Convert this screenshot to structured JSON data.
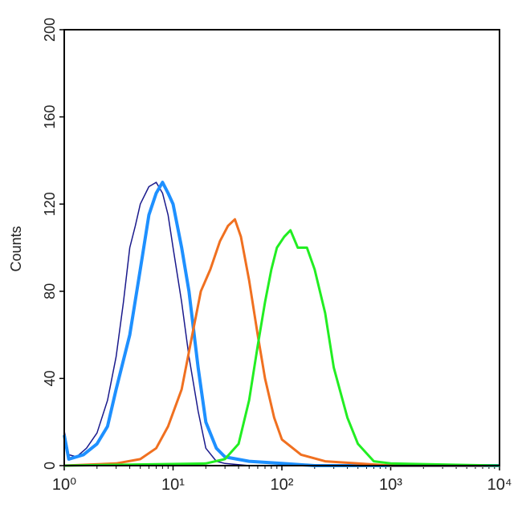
{
  "chart_data": {
    "type": "line",
    "xscale": "log",
    "ylabel": "Counts",
    "xlim": [
      1,
      10000
    ],
    "ylim": [
      0,
      200
    ],
    "xticks": [
      {
        "value": 1,
        "label": "10⁰"
      },
      {
        "value": 10,
        "label": "10¹"
      },
      {
        "value": 100,
        "label": "10²"
      },
      {
        "value": 1000,
        "label": "10³"
      },
      {
        "value": 10000,
        "label": "10⁴"
      }
    ],
    "yticks": [
      0,
      40,
      80,
      120,
      160,
      200
    ],
    "series": [
      {
        "color": "#1a1a8c",
        "width": 1.5,
        "x": [
          1,
          1.1,
          1.3,
          1.6,
          2,
          2.5,
          3,
          3.5,
          4,
          4.5,
          5,
          6,
          7,
          8,
          9,
          10,
          12,
          14,
          17,
          20,
          25,
          30,
          50
        ],
        "values": [
          16,
          5,
          4,
          8,
          15,
          30,
          50,
          75,
          100,
          110,
          120,
          128,
          130,
          125,
          115,
          100,
          75,
          50,
          25,
          8,
          2,
          1,
          0
        ]
      },
      {
        "color": "#1e90ff",
        "width": 4,
        "x": [
          1,
          1.1,
          1.5,
          2,
          2.5,
          3,
          4,
          5,
          6,
          7,
          8,
          9,
          10,
          12,
          14,
          17,
          20,
          25,
          30,
          50,
          100,
          200,
          10000
        ],
        "values": [
          14,
          3,
          5,
          10,
          18,
          35,
          60,
          90,
          115,
          125,
          130,
          125,
          120,
          100,
          80,
          45,
          20,
          8,
          4,
          2,
          1,
          0,
          0
        ]
      },
      {
        "color": "#f07020",
        "width": 3,
        "x": [
          1,
          3,
          5,
          7,
          9,
          12,
          15,
          18,
          22,
          27,
          32,
          37,
          42,
          50,
          60,
          70,
          85,
          100,
          150,
          250,
          500,
          1000,
          10000
        ],
        "values": [
          0,
          1,
          3,
          8,
          18,
          35,
          60,
          80,
          90,
          103,
          110,
          113,
          105,
          85,
          60,
          40,
          22,
          12,
          5,
          2,
          1,
          0,
          0
        ]
      },
      {
        "color": "#22ee22",
        "width": 3,
        "x": [
          1,
          20,
          30,
          40,
          50,
          60,
          70,
          80,
          90,
          105,
          120,
          140,
          170,
          200,
          250,
          300,
          400,
          500,
          700,
          1000,
          10000
        ],
        "values": [
          0,
          1,
          3,
          10,
          30,
          55,
          75,
          90,
          100,
          105,
          108,
          100,
          100,
          90,
          70,
          45,
          22,
          10,
          2,
          1,
          0
        ]
      }
    ]
  }
}
